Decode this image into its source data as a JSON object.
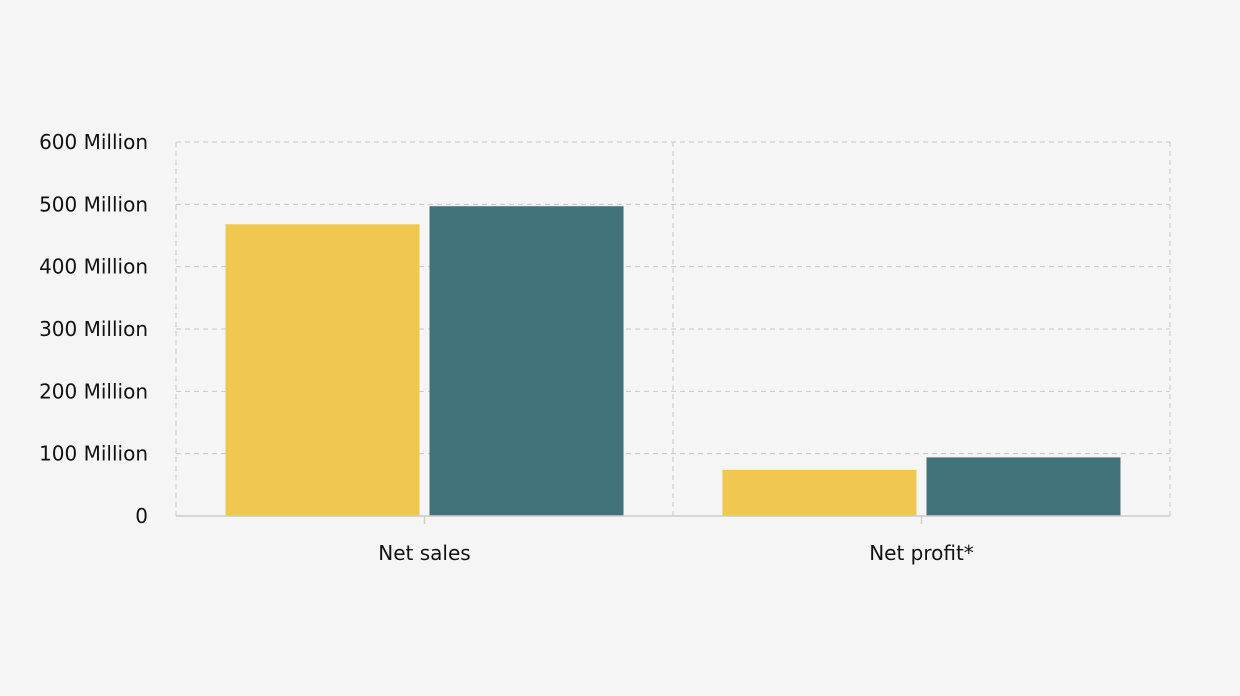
{
  "chart_data": {
    "type": "bar",
    "categories": [
      "Net sales",
      "Net profit*"
    ],
    "series": [
      {
        "values": [
          468,
          74
        ],
        "color": "#f0c750"
      },
      {
        "values": [
          497,
          94
        ],
        "color": "#42727c"
      }
    ],
    "y_ticks": [
      {
        "value": 0,
        "label": "0"
      },
      {
        "value": 100,
        "label": "100 Million"
      },
      {
        "value": 200,
        "label": "200 Million"
      },
      {
        "value": 300,
        "label": "300 Million"
      },
      {
        "value": 400,
        "label": "400 Million"
      },
      {
        "value": 500,
        "label": "500 Million"
      },
      {
        "value": 600,
        "label": "600 Million"
      }
    ],
    "ylim": [
      0,
      600
    ],
    "value_unit": "Million",
    "grid": true,
    "grid_style": "dashed"
  }
}
